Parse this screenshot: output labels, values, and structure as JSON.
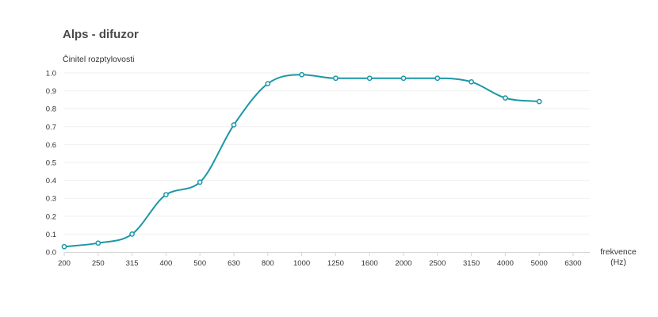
{
  "chart_data": {
    "type": "line",
    "title": "Alps - difuzor",
    "ylabel": "Činitel rozptylovosti",
    "xlabel": "frekvence\n(Hz)",
    "categories": [
      "200",
      "250",
      "315",
      "400",
      "500",
      "630",
      "800",
      "1000",
      "1250",
      "1600",
      "2000",
      "2500",
      "3150",
      "4000",
      "5000",
      "6300"
    ],
    "series": [
      {
        "values": [
          0.03,
          0.05,
          0.1,
          0.32,
          0.39,
          0.71,
          0.94,
          0.99,
          0.97,
          0.97,
          0.97,
          0.97,
          0.95,
          0.86,
          0.84,
          null
        ]
      }
    ],
    "ylim": [
      0,
      1.0
    ],
    "yticks": [
      "0.0",
      "0.1",
      "0.2",
      "0.3",
      "0.4",
      "0.5",
      "0.6",
      "0.7",
      "0.8",
      "0.9",
      "1.0"
    ],
    "grid": true,
    "line_color": "#1a97a6",
    "grid_color": "#efefef",
    "axis_color": "#d6d6d6",
    "text_color": "#333333"
  }
}
